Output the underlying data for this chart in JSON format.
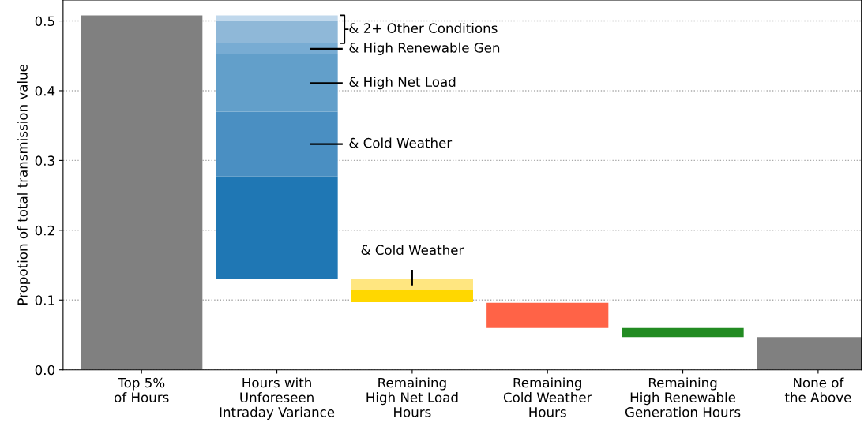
{
  "chart_data": {
    "type": "bar",
    "ylabel": "Propotion of total transmission value",
    "categories": [
      "Top 5%\nof Hours",
      "Hours with\nUnforeseen\nIntraday Variance",
      "Remaining\nHigh Net Load\nHours",
      "Remaining\nCold Weather\nHours",
      "Remaining\nHigh Renewable\nGeneration Hours",
      "None of\nthe Above"
    ],
    "series": [
      {
        "colors": [
          "#808080",
          "#1f77b4",
          "#ffd700",
          "#ff6347",
          "#228b22",
          "#808080"
        ],
        "base": [
          0,
          0.13,
          0.097,
          0.06,
          0.047,
          0
        ],
        "values": [
          0.508,
          0.147,
          0.018,
          0.036,
          0.013,
          0.047
        ]
      },
      {
        "colors": [
          null,
          "#4a8fc2",
          "#ffe680",
          null,
          null,
          null
        ],
        "base": [
          null,
          0.277,
          0.115,
          null,
          null,
          null
        ],
        "values": [
          null,
          0.093,
          0.015,
          null,
          null,
          null
        ]
      },
      {
        "colors": [
          null,
          "#629fca",
          null,
          null,
          null,
          null
        ],
        "base": [
          null,
          0.37,
          null,
          null,
          null,
          null
        ],
        "values": [
          null,
          0.082,
          null,
          null,
          null,
          null
        ]
      },
      {
        "colors": [
          null,
          "#78acd3",
          null,
          null,
          null,
          null
        ],
        "base": [
          null,
          0.452,
          null,
          null,
          null,
          null
        ],
        "values": [
          null,
          0.016,
          null,
          null,
          null,
          null
        ]
      },
      {
        "colors": [
          null,
          "#8fb8d8",
          null,
          null,
          null,
          null
        ],
        "base": [
          null,
          0.468,
          null,
          null,
          null,
          null
        ],
        "values": [
          null,
          0.032,
          null,
          null,
          null,
          null
        ]
      },
      {
        "colors": [
          null,
          "#c0d8ec",
          null,
          null,
          null,
          null
        ],
        "base": [
          null,
          0.5,
          null,
          null,
          null,
          null
        ],
        "values": [
          null,
          0.008,
          null,
          null,
          null,
          null
        ]
      }
    ],
    "ylim": [
      0,
      0.53
    ],
    "yticks": [
      {
        "value": 0,
        "label": "0.0"
      },
      0.1,
      0.2,
      0.3,
      0.4,
      0.5
    ],
    "grid": "y",
    "annotations": [
      "& 2+ Other Conditions",
      "& High Renewable Gen",
      "& High Net Load",
      "& Cold Weather",
      "& Cold Weather"
    ]
  }
}
